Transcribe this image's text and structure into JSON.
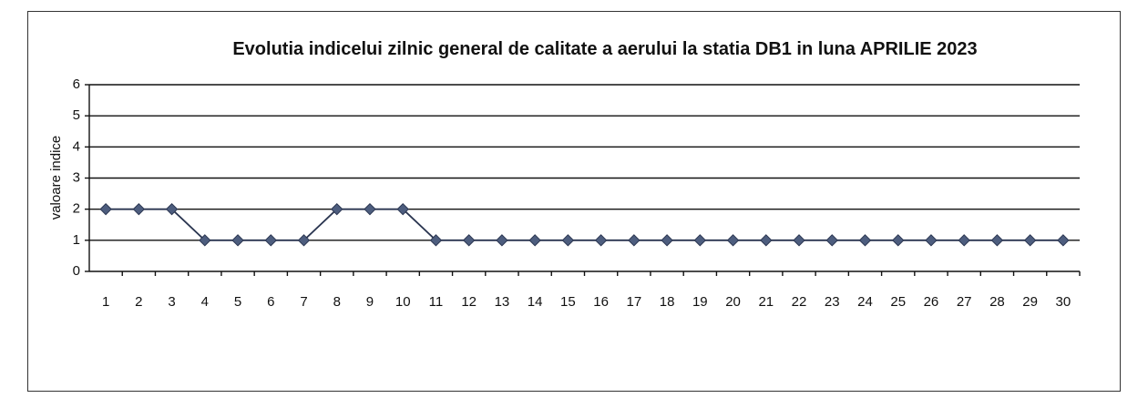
{
  "chart_data": {
    "type": "line",
    "title": "Evolutia indicelui zilnic general de calitate a aerului  la statia DB1 in luna APRILIE 2023",
    "y_label": "valoare indice",
    "categories": [
      "1",
      "2",
      "3",
      "4",
      "5",
      "6",
      "7",
      "8",
      "9",
      "10",
      "11",
      "12",
      "13",
      "14",
      "15",
      "16",
      "17",
      "18",
      "19",
      "20",
      "21",
      "22",
      "23",
      "24",
      "25",
      "26",
      "27",
      "28",
      "29",
      "30"
    ],
    "series": [
      {
        "name": "valoare indice",
        "color": "#2a3550",
        "marker_color": "#4d5d7e",
        "values": [
          2,
          2,
          2,
          1,
          1,
          1,
          1,
          2,
          2,
          2,
          1,
          1,
          1,
          1,
          1,
          1,
          1,
          1,
          1,
          1,
          1,
          1,
          1,
          1,
          1,
          1,
          1,
          1,
          1,
          1
        ]
      }
    ],
    "ylim": [
      0,
      6
    ],
    "yticks": [
      0,
      1,
      2,
      3,
      4,
      5,
      6
    ],
    "grid": true
  }
}
